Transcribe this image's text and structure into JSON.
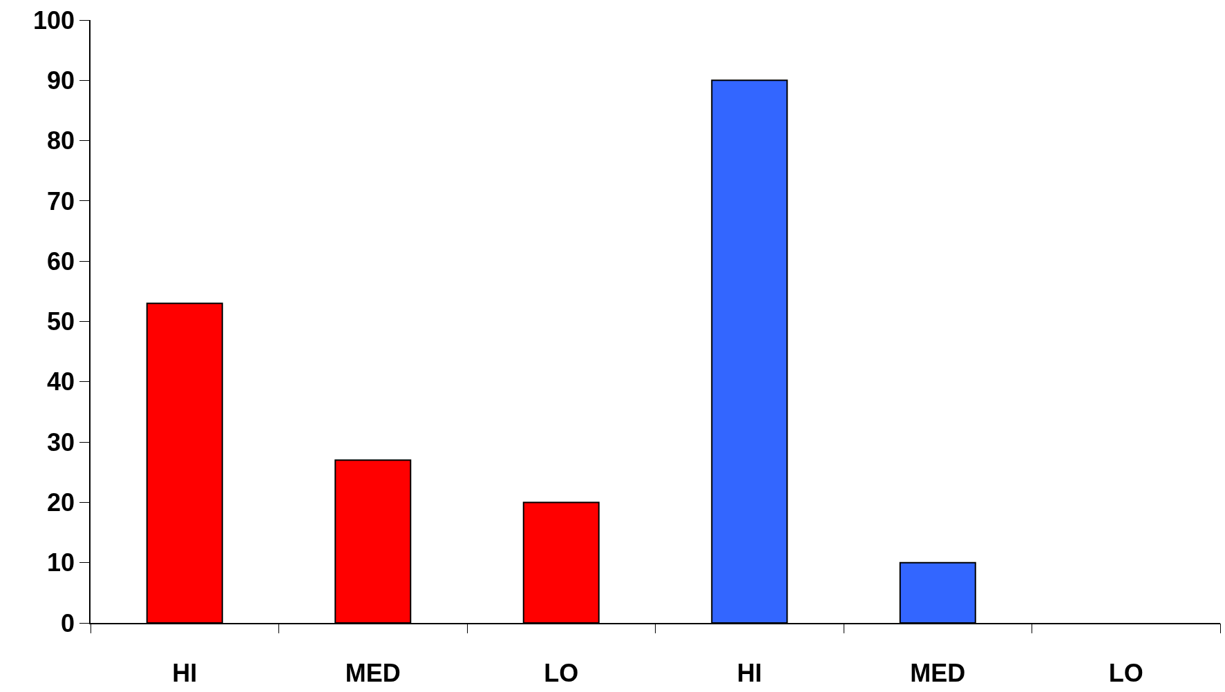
{
  "chart_data": {
    "type": "bar",
    "categories": [
      "HI",
      "MED",
      "LO",
      "HI",
      "MED",
      "LO"
    ],
    "values": [
      53,
      27,
      20,
      90,
      10,
      0
    ],
    "colors": [
      "#ff0000",
      "#ff0000",
      "#ff0000",
      "#3366ff",
      "#3366ff",
      "#3366ff"
    ],
    "ylim": [
      0,
      100
    ],
    "yticks": [
      0,
      10,
      20,
      30,
      40,
      50,
      60,
      70,
      80,
      90,
      100
    ]
  }
}
